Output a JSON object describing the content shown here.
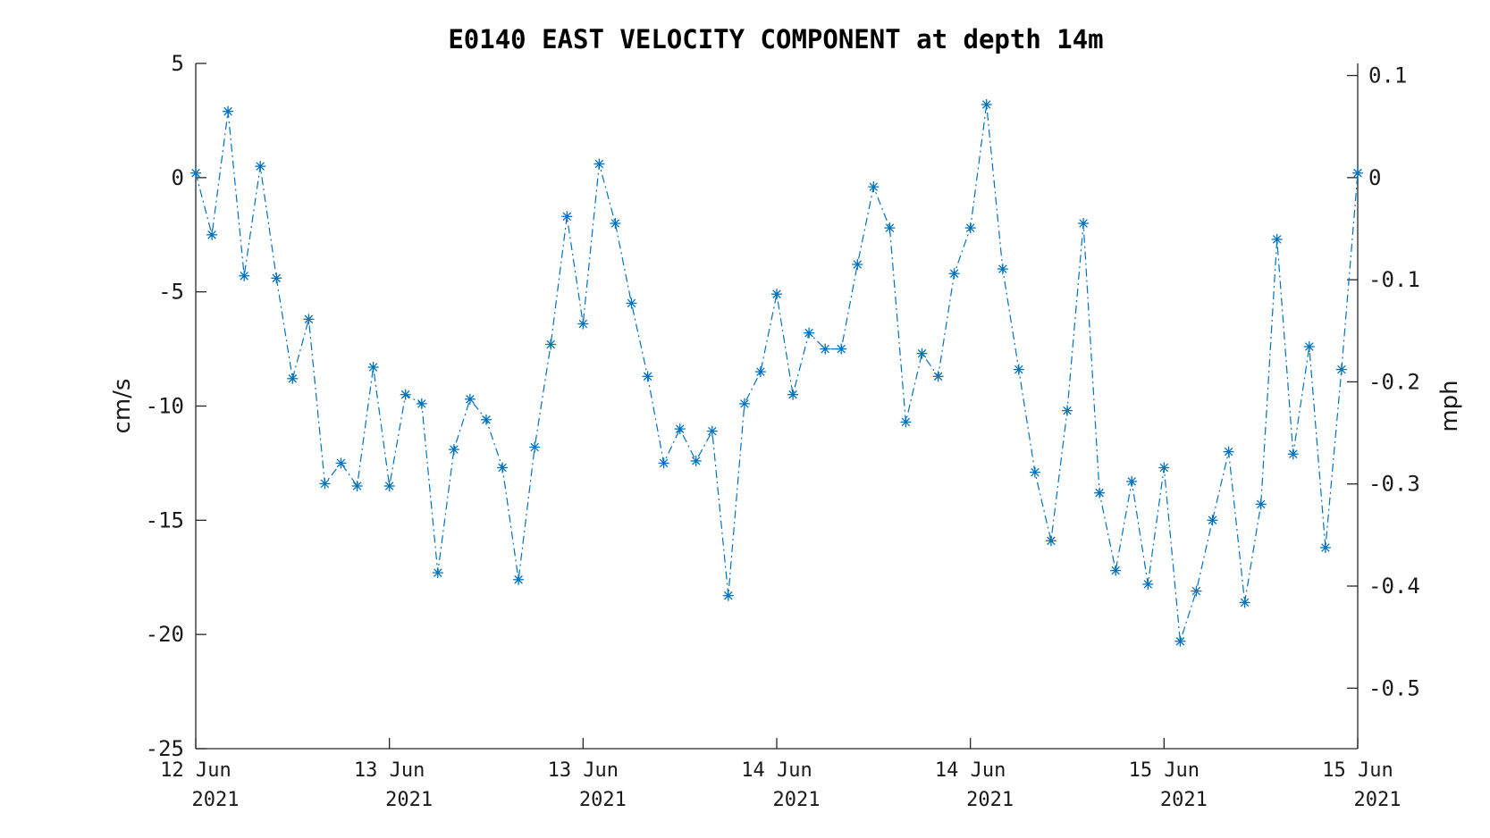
{
  "chart_data": {
    "type": "line",
    "title": "E0140 EAST VELOCITY COMPONENT at depth 14m",
    "ylabel": "cm/s",
    "ylabel_right": "mph",
    "ylim": [
      -25,
      5
    ],
    "yticks": [
      "5",
      "0",
      "-5",
      "-10",
      "-15",
      "-20",
      "-25"
    ],
    "yticks_right": [
      "0.1",
      "0",
      "-0.1",
      "-0.2",
      "-0.3",
      "-0.4",
      "-0.5"
    ],
    "xtick_labels": [
      {
        "line1": "12 Jun",
        "line2": "2021"
      },
      {
        "line1": "13 Jun",
        "line2": "2021"
      },
      {
        "line1": "13 Jun",
        "line2": "2021"
      },
      {
        "line1": "14 Jun",
        "line2": "2021"
      },
      {
        "line1": "14 Jun",
        "line2": "2021"
      },
      {
        "line1": "15 Jun",
        "line2": "2021"
      },
      {
        "line1": "15 Jun",
        "line2": "2021"
      }
    ],
    "grid": false,
    "line_style": "dash-dot",
    "marker": "asterisk",
    "color": "#0072BD",
    "series": [
      {
        "values": [
          0.2,
          -2.5,
          2.9,
          -4.3,
          0.5,
          -4.4,
          -8.8,
          -6.2,
          -13.4,
          -12.5,
          -13.5,
          -8.3,
          -13.5,
          -9.5,
          -9.9,
          -17.3,
          -11.9,
          -9.7,
          -10.6,
          -12.7,
          -17.6,
          -11.8,
          -7.3,
          -1.7,
          -6.4,
          0.6,
          -2.0,
          -5.5,
          -8.7,
          -12.5,
          -11.0,
          -12.4,
          -11.1,
          -18.3,
          -9.9,
          -8.5,
          -5.1,
          -9.5,
          -6.8,
          -7.5,
          -7.5,
          -3.8,
          -0.4,
          -2.2,
          -10.7,
          -7.7,
          -8.7,
          -4.2,
          -2.2,
          3.2,
          -4.0,
          -8.4,
          -12.9,
          -15.9,
          -10.2,
          -2.0,
          -13.8,
          -17.2,
          -13.3,
          -17.8,
          -12.7,
          -20.3,
          -18.1,
          -15.0,
          -12.0,
          -18.6,
          -14.3,
          -2.7,
          -12.1,
          -7.4,
          -16.2,
          -8.4,
          0.2
        ]
      }
    ]
  }
}
